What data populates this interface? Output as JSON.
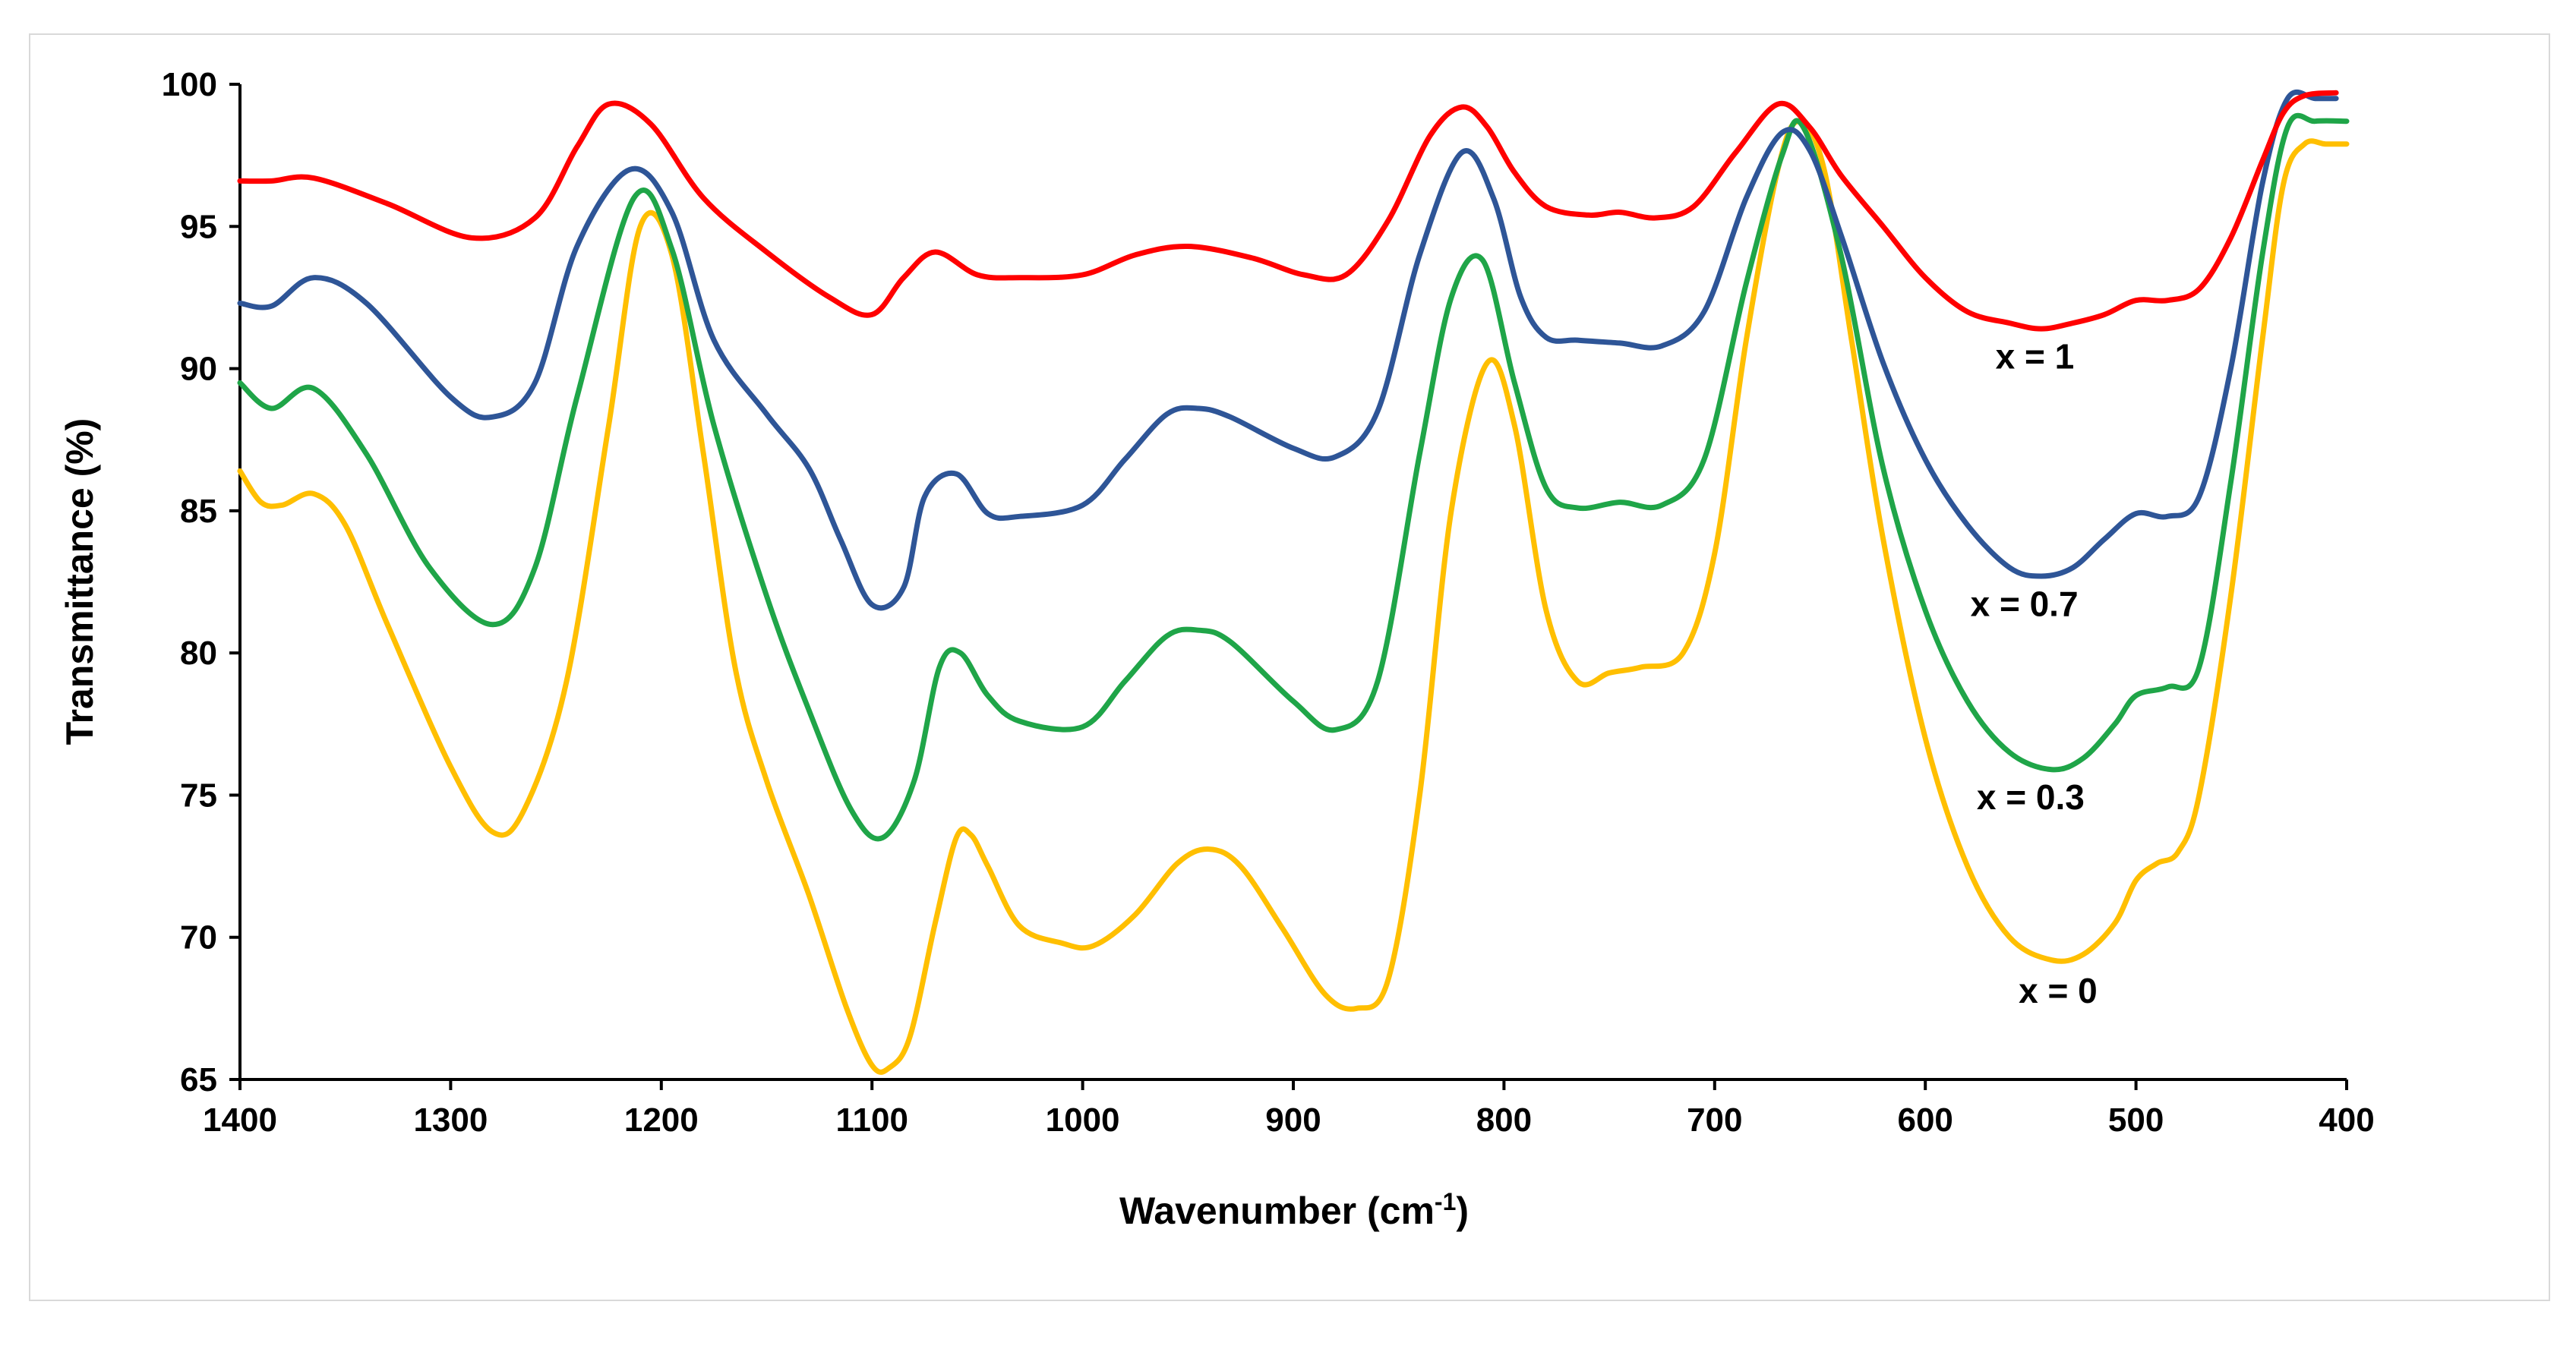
{
  "chart_data": {
    "type": "line",
    "title": "",
    "xlabel": "Wavenumber (cm",
    "xlabel_sup": "-1",
    "xlabel_close": ")",
    "ylabel": "Transmittance  (%)",
    "xlim": [
      1400,
      400
    ],
    "ylim": [
      65,
      100
    ],
    "x_ticks": [
      1400,
      1300,
      1200,
      1100,
      1000,
      900,
      800,
      700,
      600,
      500,
      400
    ],
    "y_ticks": [
      65,
      70,
      75,
      80,
      85,
      90,
      95,
      100
    ],
    "grid": false,
    "legend": "inline labels near right side",
    "series": [
      {
        "name": "x = 1",
        "color": "#ff0000",
        "x": [
          1400,
          1385,
          1365,
          1330,
          1290,
          1260,
          1240,
          1225,
          1205,
          1180,
          1150,
          1120,
          1100,
          1085,
          1070,
          1050,
          1030,
          1000,
          975,
          950,
          920,
          895,
          875,
          855,
          835,
          820,
          808,
          795,
          780,
          760,
          745,
          728,
          710,
          690,
          670,
          655,
          640,
          620,
          600,
          580,
          560,
          545,
          530,
          515,
          500,
          485,
          470,
          455,
          440,
          430,
          420,
          405
        ],
        "values": [
          96.6,
          96.6,
          96.7,
          95.8,
          94.6,
          95.3,
          97.8,
          99.3,
          98.6,
          96.0,
          94.1,
          92.5,
          91.9,
          93.2,
          94.1,
          93.3,
          93.2,
          93.3,
          94.0,
          94.3,
          93.9,
          93.3,
          93.3,
          95.2,
          98.2,
          99.2,
          98.5,
          96.9,
          95.7,
          95.4,
          95.5,
          95.3,
          95.7,
          97.6,
          99.3,
          98.5,
          96.8,
          95.0,
          93.2,
          92.0,
          91.6,
          91.4,
          91.6,
          91.9,
          92.4,
          92.4,
          92.8,
          94.6,
          97.3,
          99.0,
          99.6,
          99.7
        ]
      },
      {
        "name": "x = 0.7",
        "color": "#2e5597",
        "x": [
          1400,
          1385,
          1365,
          1340,
          1300,
          1280,
          1260,
          1240,
          1215,
          1195,
          1175,
          1150,
          1130,
          1115,
          1100,
          1085,
          1075,
          1060,
          1045,
          1030,
          1000,
          980,
          960,
          945,
          930,
          900,
          880,
          860,
          840,
          820,
          805,
          792,
          780,
          765,
          745,
          725,
          705,
          685,
          668,
          655,
          640,
          620,
          600,
          580,
          560,
          545,
          530,
          515,
          500,
          485,
          470,
          455,
          440,
          428,
          415,
          405
        ],
        "values": [
          92.3,
          92.2,
          93.2,
          92.3,
          89.0,
          88.3,
          89.5,
          94.3,
          97.0,
          95.5,
          91.0,
          88.4,
          86.5,
          84.0,
          81.7,
          82.3,
          85.5,
          86.3,
          84.9,
          84.8,
          85.2,
          86.8,
          88.4,
          88.6,
          88.3,
          87.2,
          86.9,
          88.5,
          94.0,
          97.6,
          96.0,
          92.5,
          91.1,
          91.0,
          90.9,
          90.8,
          92.0,
          96.0,
          98.3,
          97.7,
          94.7,
          90.2,
          86.8,
          84.5,
          83.0,
          82.7,
          83.0,
          84.0,
          84.9,
          84.8,
          85.5,
          90.0,
          96.5,
          99.5,
          99.5,
          99.5
        ]
      },
      {
        "name": "x = 0.3",
        "color": "#1fa548",
        "x": [
          1400,
          1385,
          1365,
          1340,
          1310,
          1280,
          1260,
          1240,
          1213,
          1195,
          1175,
          1150,
          1130,
          1110,
          1095,
          1080,
          1068,
          1058,
          1045,
          1030,
          1000,
          980,
          960,
          945,
          930,
          900,
          880,
          860,
          840,
          825,
          810,
          795,
          780,
          765,
          745,
          725,
          705,
          685,
          668,
          658,
          640,
          620,
          600,
          580,
          560,
          540,
          525,
          510,
          500,
          485,
          470,
          455,
          440,
          428,
          415,
          400
        ],
        "values": [
          89.5,
          88.6,
          89.3,
          87.0,
          83.0,
          81.0,
          83.0,
          89.0,
          96.0,
          94.2,
          88.0,
          82.0,
          78.0,
          74.5,
          73.5,
          75.5,
          79.5,
          80.0,
          78.5,
          77.6,
          77.4,
          79.0,
          80.6,
          80.8,
          80.4,
          78.3,
          77.3,
          79.0,
          87.0,
          92.5,
          93.8,
          89.5,
          85.8,
          85.1,
          85.3,
          85.2,
          86.8,
          93.0,
          97.5,
          98.5,
          94.0,
          86.5,
          81.5,
          78.3,
          76.5,
          75.9,
          76.3,
          77.5,
          78.5,
          78.8,
          79.5,
          86.0,
          94.0,
          98.5,
          98.7,
          98.7
        ]
      },
      {
        "name": "x = 0",
        "color": "#ffbf00",
        "x": [
          1400,
          1390,
          1380,
          1365,
          1350,
          1330,
          1300,
          1280,
          1265,
          1245,
          1225,
          1210,
          1195,
          1180,
          1165,
          1150,
          1130,
          1112,
          1100,
          1092,
          1082,
          1070,
          1060,
          1053,
          1045,
          1030,
          1010,
          995,
          975,
          955,
          940,
          925,
          905,
          885,
          870,
          855,
          840,
          825,
          808,
          795,
          780,
          765,
          750,
          735,
          715,
          700,
          685,
          670,
          660,
          648,
          635,
          620,
          600,
          580,
          560,
          540,
          525,
          510,
          500,
          490,
          480,
          470,
          455,
          440,
          430,
          420,
          410,
          400
        ],
        "values": [
          86.4,
          85.3,
          85.2,
          85.6,
          84.5,
          81.0,
          76.0,
          73.7,
          74.5,
          79.0,
          88.0,
          95.0,
          94.0,
          87.0,
          79.5,
          75.5,
          71.5,
          67.5,
          65.5,
          65.4,
          66.5,
          70.5,
          73.5,
          73.6,
          72.5,
          70.4,
          69.8,
          69.7,
          70.8,
          72.6,
          73.1,
          72.5,
          70.3,
          68.0,
          67.5,
          68.5,
          75.0,
          85.0,
          90.2,
          88.0,
          81.5,
          79.0,
          79.3,
          79.5,
          80.0,
          83.5,
          91.0,
          97.0,
          98.7,
          97.0,
          91.0,
          84.0,
          77.0,
          72.5,
          70.0,
          69.2,
          69.4,
          70.5,
          72.0,
          72.6,
          73.0,
          75.0,
          82.0,
          91.0,
          96.5,
          97.9,
          97.9,
          97.9
        ]
      }
    ],
    "annotations": [
      {
        "text": "x = 1",
        "x": 548,
        "y": 90.0
      },
      {
        "text": "x = 0.7",
        "x": 553,
        "y": 81.3
      },
      {
        "text": "x = 0.3",
        "x": 550,
        "y": 74.5
      },
      {
        "text": "x = 0",
        "x": 537,
        "y": 67.7
      }
    ]
  }
}
